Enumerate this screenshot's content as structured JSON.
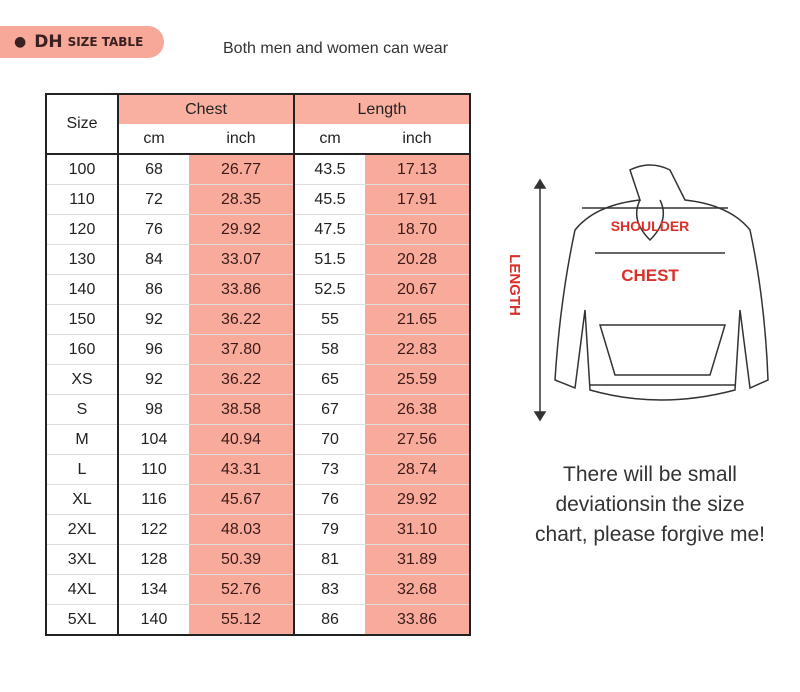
{
  "header": {
    "badge_brand": "DH",
    "badge_label": "SIZE TABLE",
    "subtitle": "Both men and women can wear"
  },
  "table": {
    "size_header": "Size",
    "chest_header": "Chest",
    "length_header": "Length",
    "unit_cm": "cm",
    "unit_inch": "inch",
    "rows": [
      [
        "100",
        "68",
        "26.77",
        "43.5",
        "17.13"
      ],
      [
        "110",
        "72",
        "28.35",
        "45.5",
        "17.91"
      ],
      [
        "120",
        "76",
        "29.92",
        "47.5",
        "18.70"
      ],
      [
        "130",
        "84",
        "33.07",
        "51.5",
        "20.28"
      ],
      [
        "140",
        "86",
        "33.86",
        "52.5",
        "20.67"
      ],
      [
        "150",
        "92",
        "36.22",
        "55",
        "21.65"
      ],
      [
        "160",
        "96",
        "37.80",
        "58",
        "22.83"
      ],
      [
        "XS",
        "92",
        "36.22",
        "65",
        "25.59"
      ],
      [
        "S",
        "98",
        "38.58",
        "67",
        "26.38"
      ],
      [
        "M",
        "104",
        "40.94",
        "70",
        "27.56"
      ],
      [
        "L",
        "110",
        "43.31",
        "73",
        "28.74"
      ],
      [
        "XL",
        "116",
        "45.67",
        "76",
        "29.92"
      ],
      [
        "2XL",
        "122",
        "48.03",
        "79",
        "31.10"
      ],
      [
        "3XL",
        "128",
        "50.39",
        "81",
        "31.89"
      ],
      [
        "4XL",
        "134",
        "52.76",
        "83",
        "32.68"
      ],
      [
        "5XL",
        "140",
        "55.12",
        "86",
        "33.86"
      ]
    ]
  },
  "diagram": {
    "shoulder": "SHOULDER",
    "chest": "CHEST",
    "length": "LENGTH"
  },
  "note": [
    "There will be small",
    "deviationsin the size",
    "chart, please forgive me!"
  ],
  "colors": {
    "accent": "#f9ab9b",
    "label_red": "#d9302a"
  }
}
